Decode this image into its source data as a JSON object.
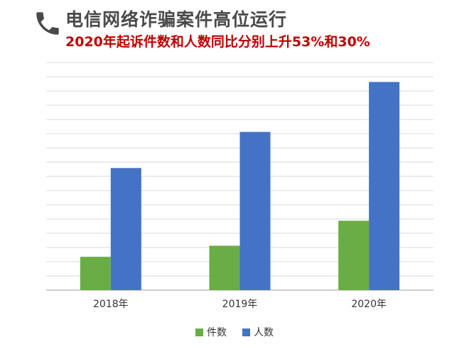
{
  "title": "电信网络诈骗案件高位运行",
  "subtitle": "2020年起诉件数和人数同比分别上升53%和30%",
  "icon": "phone-icon",
  "colors": {
    "title": "#4a4a4a",
    "subtitle": "#c00000",
    "cases": "#6aad45",
    "people": "#4472c4",
    "grid": "#d9d9d9",
    "axis": "#bfbfbf"
  },
  "chart_data": {
    "type": "bar",
    "categories": [
      "2018年",
      "2019年",
      "2020年"
    ],
    "series": [
      {
        "name": "件数",
        "values": [
          12,
          16,
          25
        ]
      },
      {
        "name": "人数",
        "values": [
          44,
          57,
          75
        ]
      }
    ],
    "ylim": [
      0,
      82
    ],
    "y_tick_labels_shown": false,
    "grid": true,
    "legend_position": "bottom"
  }
}
